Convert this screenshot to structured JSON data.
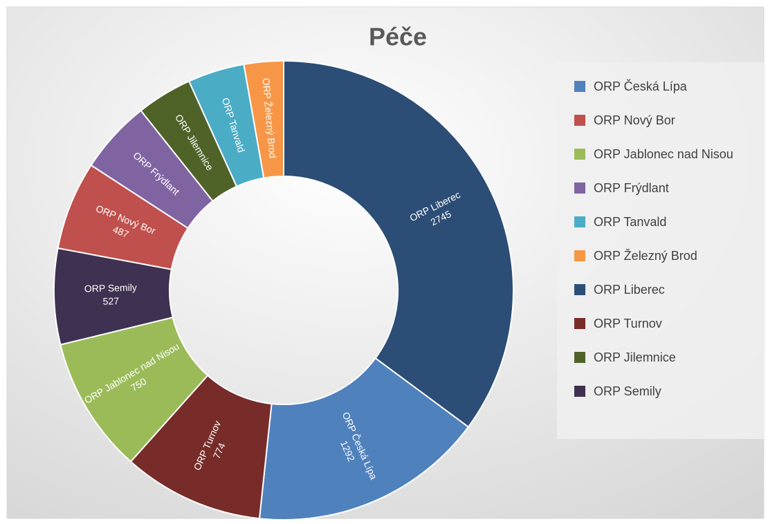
{
  "chart_data": {
    "type": "donut",
    "title": "Péče",
    "categories": [
      "ORP Liberec",
      "ORP Česká Lípa",
      "ORP Turnov",
      "ORP Jablonec nad Nisou",
      "ORP Semily",
      "ORP Nový Bor",
      "ORP Frýdlant",
      "ORP Jilemnice",
      "ORP Tanvald",
      "ORP Železný Brod"
    ],
    "values": [
      2745,
      1292,
      774,
      750,
      527,
      487,
      402,
      306,
      311,
      217
    ],
    "value_labels": [
      "2745",
      "1292",
      "774",
      "750",
      "527",
      "487",
      null,
      null,
      null,
      null
    ],
    "colors": [
      "#2c4d75",
      "#4f81bd",
      "#772c2a",
      "#9bbb59",
      "#3f3151",
      "#c0504d",
      "#8064a2",
      "#4f6228",
      "#4bacc6",
      "#f79646"
    ],
    "legend": [
      "ORP Česká Lípa",
      "ORP Nový Bor",
      "ORP Jablonec nad Nisou",
      "ORP Frýdlant",
      "ORP Tanvald",
      "ORP Železný Brod",
      "ORP Liberec",
      "ORP Turnov",
      "ORP Jilemnice",
      "ORP Semily"
    ],
    "legend_position": "right"
  }
}
